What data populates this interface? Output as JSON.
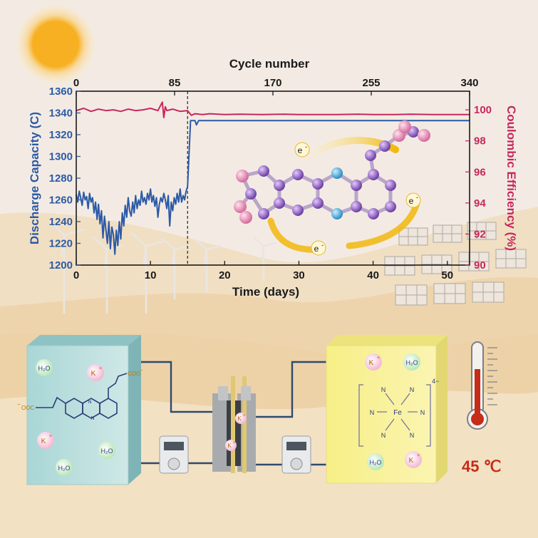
{
  "chart_data": {
    "type": "line",
    "title": "",
    "top_axis": {
      "label": "Cycle number",
      "ticks": [
        "0",
        "85",
        "170",
        "255",
        "340"
      ],
      "range": [
        0,
        340
      ]
    },
    "x_axis": {
      "label": "Time (days)",
      "ticks": [
        "0",
        "10",
        "20",
        "30",
        "40",
        "50"
      ],
      "range": [
        0,
        53
      ]
    },
    "y_left": {
      "label": "Discharge Capacity (C)",
      "ticks": [
        "1200",
        "1220",
        "1240",
        "1260",
        "1280",
        "1300",
        "1320",
        "1340",
        "1360"
      ],
      "range": [
        1200,
        1360
      ]
    },
    "y_right": {
      "label": "Coulombic Efficiency (%)",
      "ticks": [
        "90",
        "92",
        "94",
        "96",
        "98",
        "100"
      ],
      "range": [
        90,
        101.2
      ]
    },
    "divider_x": 15,
    "series": [
      {
        "axis": "left",
        "color": "#2c5aa6",
        "x": [
          0,
          0.2,
          0.4,
          0.6,
          0.8,
          1.0,
          1.2,
          1.4,
          1.6,
          1.8,
          2.0,
          2.2,
          2.4,
          2.6,
          2.8,
          3.0,
          3.2,
          3.4,
          3.6,
          3.8,
          4.0,
          4.2,
          4.4,
          4.6,
          4.8,
          5.0,
          5.2,
          5.4,
          5.6,
          5.8,
          6.0,
          6.2,
          6.4,
          6.6,
          6.8,
          7.0,
          7.2,
          7.4,
          7.6,
          7.8,
          8.0,
          8.2,
          8.4,
          8.6,
          8.8,
          9.0,
          9.2,
          9.4,
          9.6,
          9.8,
          10.0,
          10.2,
          10.4,
          10.6,
          10.8,
          11.0,
          11.2,
          11.4,
          11.6,
          11.8,
          12.0,
          12.2,
          12.4,
          12.6,
          12.8,
          13.0,
          13.2,
          13.4,
          13.6,
          13.8,
          14.0,
          14.2,
          14.4,
          14.6,
          14.8,
          15.0,
          15.4,
          16.0,
          16.2,
          16.5,
          17,
          20,
          25,
          30,
          35,
          40,
          45,
          50,
          53
        ],
        "y": [
          1265,
          1258,
          1268,
          1262,
          1255,
          1267,
          1260,
          1263,
          1252,
          1266,
          1258,
          1262,
          1248,
          1258,
          1242,
          1256,
          1238,
          1250,
          1225,
          1245,
          1232,
          1220,
          1240,
          1215,
          1235,
          1228,
          1210,
          1232,
          1218,
          1240,
          1224,
          1248,
          1236,
          1255,
          1244,
          1262,
          1250,
          1245,
          1258,
          1248,
          1264,
          1252,
          1260,
          1255,
          1268,
          1258,
          1262,
          1256,
          1266,
          1260,
          1270,
          1258,
          1264,
          1254,
          1262,
          1244,
          1256,
          1262,
          1258,
          1266,
          1260,
          1252,
          1264,
          1236,
          1258,
          1250,
          1262,
          1256,
          1266,
          1258,
          1270,
          1258,
          1264,
          1260,
          1268,
          1272,
          1333,
          1333,
          1329,
          1333,
          1333,
          1333,
          1333,
          1333,
          1333,
          1333,
          1333,
          1333,
          1333
        ]
      },
      {
        "axis": "right",
        "color": "#c8275c",
        "x": [
          0,
          1,
          2,
          3,
          4,
          5,
          6,
          7,
          8,
          9,
          10,
          11,
          11.6,
          11.8,
          12,
          12.2,
          13,
          14,
          15,
          15.5,
          16,
          17,
          18,
          20,
          22,
          25,
          28,
          30,
          33,
          35,
          38,
          40,
          43,
          45,
          48,
          50,
          53
        ],
        "y": [
          99.95,
          100.1,
          99.9,
          100.05,
          99.95,
          100.0,
          99.9,
          100.05,
          99.95,
          100.0,
          100.1,
          99.95,
          100.5,
          99.5,
          100.2,
          99.95,
          100.05,
          99.9,
          99.95,
          99.65,
          99.75,
          99.7,
          99.75,
          99.7,
          99.72,
          99.7,
          99.72,
          99.7,
          99.7,
          99.7,
          99.72,
          99.7,
          99.7,
          99.72,
          99.7,
          99.7,
          99.7
        ]
      }
    ]
  },
  "scene": {
    "electron_label": "e",
    "electron_sup": "-",
    "left_tank": {
      "water": "H₂O",
      "potassium": "K",
      "plus": "+",
      "carboxylate": "COO",
      "carboxylate_left": "OOC",
      "minus": "−"
    },
    "right_tank": {
      "water": "H₂O",
      "potassium": "K",
      "plus": "+",
      "ligand": "N",
      "metal": "Fe",
      "charge": "4−"
    },
    "cell_ion": "K",
    "cell_ion_plus": "+",
    "temperature": "45 ℃"
  }
}
